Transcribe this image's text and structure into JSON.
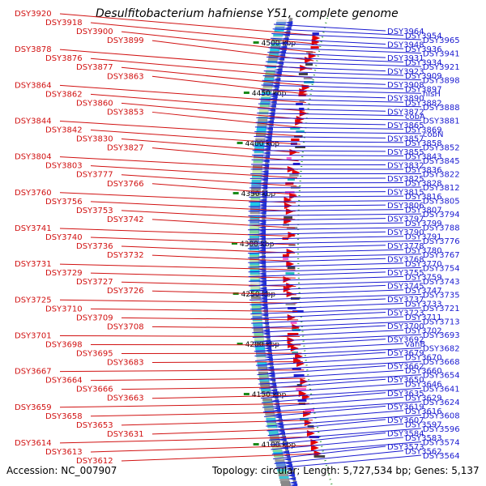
{
  "title": "Desulfitobacterium hafniense Y51, complete genome",
  "footer": {
    "accession": "Accession: NC_007907",
    "summary": "Topology: circular; Length: 5,727,534 bp; Genes: 5,137"
  },
  "scale_labels": [
    "4500 kbp",
    "4450 kbp",
    "4400 kbp",
    "4350 kbp",
    "4300 kbp",
    "4250 kbp",
    "4200 kbp",
    "4150 kbp",
    "4100 kbp"
  ],
  "left_labels": [
    "DSY3920",
    "DSY3918",
    "DSY3900",
    "DSY3899",
    "DSY3878",
    "DSY3876",
    "DSY3877",
    "DSY3863",
    "DSY3864",
    "DSY3862",
    "DSY3860",
    "DSY3853",
    "DSY3844",
    "DSY3842",
    "DSY3830",
    "DSY3827",
    "DSY3804",
    "DSY3803",
    "DSY3777",
    "DSY3766",
    "DSY3760",
    "DSY3756",
    "DSY3753",
    "DSY3742",
    "DSY3741",
    "DSY3740",
    "DSY3736",
    "DSY3732",
    "DSY3731",
    "DSY3729",
    "DSY3727",
    "DSY3726",
    "DSY3725",
    "DSY3710",
    "DSY3709",
    "DSY3708",
    "DSY3701",
    "DSY3698",
    "DSY3695",
    "DSY3683",
    "DSY3667",
    "DSY3664",
    "DSY3666",
    "DSY3663",
    "DSY3659",
    "DSY3658",
    "DSY3653",
    "DSY3631",
    "DSY3614",
    "DSY3613",
    "DSY3612"
  ],
  "right_labels": [
    "DSY3964",
    "DSY3954",
    "DSY3965",
    "DSY3948",
    "DSY3936",
    "DSY3941",
    "DSY3931",
    "DSY3934",
    "DSY3921",
    "DSY3923",
    "DSY3909",
    "DSY3898",
    "DSY3908",
    "DSY3897",
    "hisH",
    "DSY3890",
    "DSY3882",
    "DSY3888",
    "DSY3872",
    "cobA",
    "DSY3881",
    "DSY3865",
    "DSY3869",
    "cobN",
    "DSY3857",
    "DSY3858",
    "DSY3852",
    "DSY3855",
    "DSY3843",
    "DSY3845",
    "DSY3832",
    "DSY3836",
    "DSY3822",
    "DSY3825",
    "DSY3828",
    "DSY3812",
    "DSY3815",
    "DSY3816",
    "DSY3805",
    "DSY3806",
    "DSY3807",
    "DSY3794",
    "DSY3797",
    "DSY3799",
    "DSY3788",
    "DSY3790",
    "DSY3791",
    "DSY3776",
    "DSY3778",
    "DSY3780",
    "DSY3767",
    "DSY3768",
    "DSY3770",
    "DSY3754",
    "DSY3755",
    "DSY3759",
    "DSY3743",
    "DSY3745",
    "DSY3747",
    "DSY3735",
    "DSY3737",
    "DSY3733",
    "DSY3721",
    "DSY3723",
    "DSY3711",
    "DSY3713",
    "DSY3700",
    "DSY3702",
    "DSY3693",
    "DSY3692",
    "vanB",
    "DSY3682",
    "DSY3679",
    "DSY3670",
    "DSY3668",
    "DSY3662",
    "DSY3660",
    "DSY3654",
    "DSY3650",
    "DSY3646",
    "DSY3641",
    "DSY3635",
    "DSY3629",
    "DSY3624",
    "DSY3619",
    "DSY3616",
    "DSY3608",
    "DSY3607",
    "DSY3597",
    "DSY3596",
    "DSY3584",
    "DSY3583",
    "DSY3574",
    "DSY3573",
    "DSY3562",
    "DSY3564"
  ],
  "colors": {
    "forward_label": "#d11111",
    "reverse_label": "#1a1ad0",
    "backbone": "#8a8a8a",
    "scale_tick": "#1a8a1a"
  }
}
